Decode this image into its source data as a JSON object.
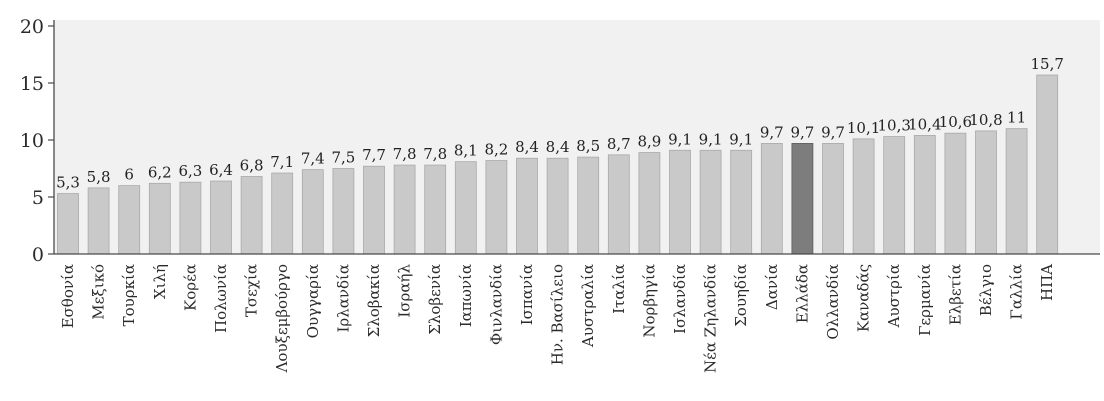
{
  "chart_data": {
    "type": "bar",
    "title": "",
    "xlabel": "",
    "ylabel": "",
    "ylim": [
      0,
      20
    ],
    "yticks": [
      0,
      5,
      10,
      15,
      20
    ],
    "grid": false,
    "categories": [
      "Εσθονία",
      "Μεξικό",
      "Τουρκία",
      "Χιλή",
      "Κορέα",
      "Πολωνία",
      "Τσεχία",
      "Λουξεμβούργο",
      "Ουγγαρία",
      "Ιρλανδία",
      "Σλοβακία",
      "Ισραήλ",
      "Σλοβενία",
      "Ιαπωνία",
      "Φινλανδία",
      "Ισπανία",
      "Ην. Βασίλειο",
      "Αυστραλία",
      "Ιταλία",
      "Νορβηγία",
      "Ισλανδία",
      "Νέα Ζηλανδία",
      "Σουηδία",
      "Δανία",
      "Ελλάδα",
      "Ολλανδία",
      "Καναδάς",
      "Αυστρία",
      "Γερμανία",
      "Ελβετία",
      "Βέλγιο",
      "Γαλλία",
      "ΗΠΑ"
    ],
    "values": [
      5.3,
      5.8,
      6,
      6.2,
      6.3,
      6.4,
      6.8,
      7.1,
      7.4,
      7.5,
      7.7,
      7.8,
      7.8,
      8.1,
      8.2,
      8.4,
      8.4,
      8.5,
      8.7,
      8.9,
      9.1,
      9.1,
      9.1,
      9.7,
      9.7,
      9.7,
      10.1,
      10.3,
      10.4,
      10.6,
      10.8,
      11,
      15.7
    ],
    "value_labels": [
      "5,3",
      "5,8",
      "6",
      "6,2",
      "6,3",
      "6,4",
      "6,8",
      "7,1",
      "7,4",
      "7,5",
      "7,7",
      "7,8",
      "7,8",
      "8,1",
      "8,2",
      "8,4",
      "8,4",
      "8,5",
      "8,7",
      "8,9",
      "9,1",
      "9,1",
      "9,1",
      "9,7",
      "9,7",
      "9,7",
      "10,1",
      "10,3",
      "10,4",
      "10,6",
      "10,8",
      "11",
      "15,7"
    ],
    "highlight_category": "Ελλάδα",
    "colors": {
      "bar": "#c9c9c9",
      "bar_edge": "#a9a9a9",
      "highlight": "#7d7d7d",
      "highlight_edge": "#5d5d5d",
      "axis": "#4a4a4a",
      "plot_background": "#f1f1f1"
    }
  }
}
